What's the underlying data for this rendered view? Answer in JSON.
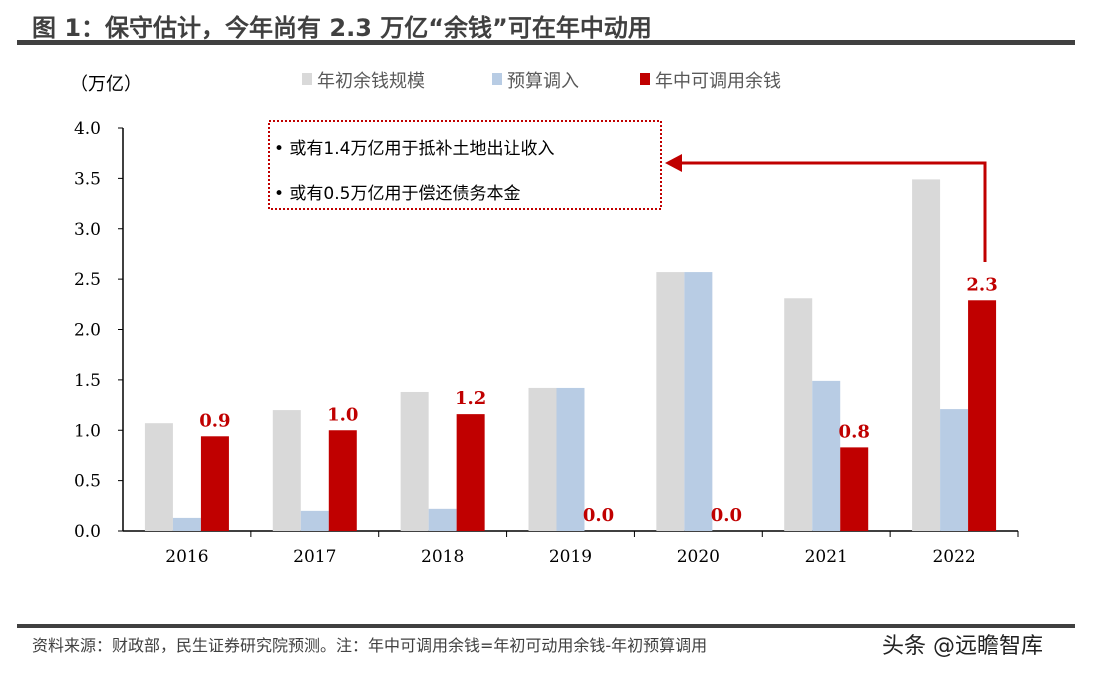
{
  "title": "图 1：保守估计，今年尚有 2.3 万亿“余钱”可在年中动用",
  "footer": "资料来源：财政部，民生证券研究院预测。注：年中可调用余钱=年初可动用余钱-年初预算调用",
  "watermark": "头条 @远瞻智库",
  "chart_data": {
    "type": "bar",
    "ylabel": "（万亿）",
    "ylim": [
      0,
      4.0
    ],
    "yticks": [
      "0.0",
      "0.5",
      "1.0",
      "1.5",
      "2.0",
      "2.5",
      "3.0",
      "3.5",
      "4.0"
    ],
    "categories": [
      "2016",
      "2017",
      "2018",
      "2019",
      "2020",
      "2021",
      "2022"
    ],
    "legend_position": "top",
    "series": [
      {
        "name": "年初余钱规模",
        "color": "#d9d9d9",
        "values": [
          1.07,
          1.2,
          1.38,
          1.42,
          2.57,
          2.31,
          3.49
        ]
      },
      {
        "name": "预算调入",
        "color": "#b8cce4",
        "values": [
          0.13,
          0.2,
          0.22,
          1.42,
          2.57,
          1.49,
          1.21
        ]
      },
      {
        "name": "年中可调用余钱",
        "color": "#c00000",
        "values": [
          0.94,
          1.0,
          1.16,
          0.0,
          0.0,
          0.83,
          2.29
        ],
        "labels": [
          "0.9",
          "1.0",
          "1.2",
          "0.0",
          "0.0",
          "0.8",
          "2.3"
        ]
      }
    ],
    "annotation": [
      "• 或有1.4万亿用于抵补土地出让收入",
      "• 或有0.5万亿用于偿还债务本金"
    ]
  }
}
